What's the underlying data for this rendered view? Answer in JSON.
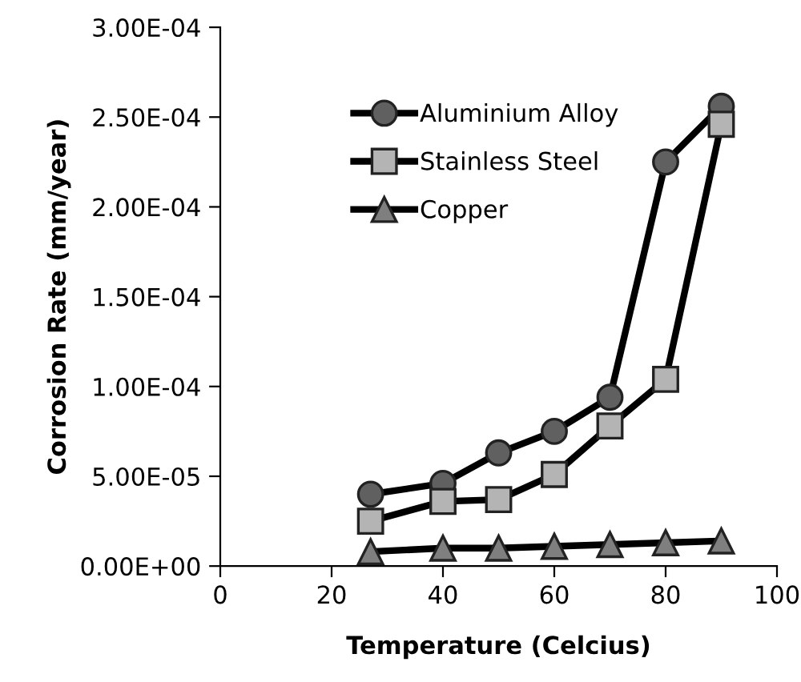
{
  "chart_data": {
    "type": "line",
    "xlabel": "Temperature (Celcius)",
    "ylabel": "Corrosion Rate (mm/year)",
    "xlim": [
      0,
      100
    ],
    "xticks": [
      0,
      20,
      40,
      60,
      80,
      100
    ],
    "ylim": [
      0,
      0.0003
    ],
    "yticks": [
      {
        "value": 0,
        "label": "0.00E+00"
      },
      {
        "value": 5e-05,
        "label": "5.00E-05"
      },
      {
        "value": 0.0001,
        "label": "1.00E-04"
      },
      {
        "value": 0.00015,
        "label": "1.50E-04"
      },
      {
        "value": 0.0002,
        "label": "2.00E-04"
      },
      {
        "value": 0.00025,
        "label": "2.50E-04"
      },
      {
        "value": 0.0003,
        "label": "3.00E-04"
      }
    ],
    "x": [
      27,
      40,
      50,
      60,
      70,
      80,
      90
    ],
    "series": [
      {
        "name": "Aluminium Alloy",
        "color": "#606060",
        "marker": "circle",
        "values": [
          4e-05,
          4.6e-05,
          6.3e-05,
          7.5e-05,
          9.4e-05,
          0.000225,
          0.000256
        ]
      },
      {
        "name": "Stainless Steel",
        "color": "#b4b4b4",
        "marker": "square",
        "values": [
          2.5e-05,
          3.6e-05,
          3.7e-05,
          5.1e-05,
          7.8e-05,
          0.000104,
          0.000246
        ]
      },
      {
        "name": "Copper",
        "color": "#7f7f7f",
        "marker": "triangle",
        "values": [
          8e-06,
          1e-05,
          1e-05,
          1.1e-05,
          1.2e-05,
          1.3e-05,
          1.4e-05
        ]
      }
    ],
    "legend": "top left",
    "grid": false,
    "line_style": "solid"
  }
}
